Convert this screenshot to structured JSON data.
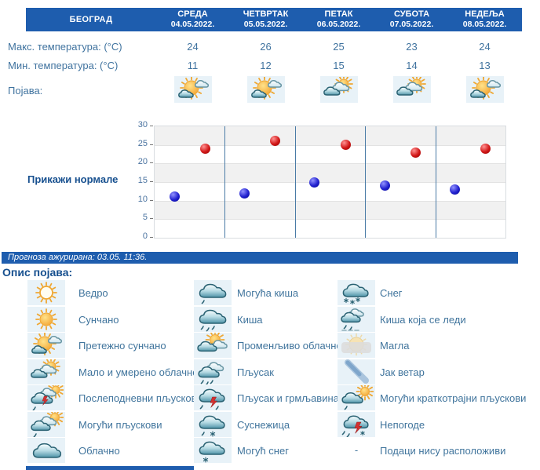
{
  "header": {
    "location": "БЕОГРАД",
    "days": [
      {
        "name": "СРЕДА",
        "date": "04.05.2022."
      },
      {
        "name": "ЧЕТВРТАК",
        "date": "05.05.2022."
      },
      {
        "name": "ПЕТАК",
        "date": "06.05.2022."
      },
      {
        "name": "СУБОТА",
        "date": "07.05.2022."
      },
      {
        "name": "НЕДЕЉА",
        "date": "08.05.2022."
      }
    ]
  },
  "table": {
    "max_label": "Макс. температура: (°C)",
    "min_label": "Мин. температура: (°C)",
    "phenomenon_label": "Појава:",
    "max_values": [
      24,
      26,
      25,
      23,
      24
    ],
    "min_values": [
      11,
      12,
      15,
      14,
      13
    ],
    "phenomenon_icons": [
      "mostly-sunny",
      "mostly-sunny",
      "partly-cloudy",
      "partly-cloudy",
      "mostly-sunny"
    ]
  },
  "chart": {
    "normals_button": "Прикажи нормале"
  },
  "chart_data": {
    "type": "scatter",
    "categories": [
      "04.05.2022.",
      "05.05.2022.",
      "06.05.2022.",
      "07.05.2022.",
      "08.05.2022."
    ],
    "series": [
      {
        "name": "Макс. температура (°C)",
        "color": "#d11616",
        "values": [
          24,
          26,
          25,
          23,
          24
        ]
      },
      {
        "name": "Мин. температура (°C)",
        "color": "#2121cf",
        "values": [
          11,
          12,
          15,
          14,
          13
        ]
      }
    ],
    "ylim": [
      0,
      30
    ],
    "yticks": [
      0,
      5,
      10,
      15,
      20,
      25,
      30
    ],
    "grid": "horizontal-bands-alternating",
    "legend_position": "none"
  },
  "status_bar": {
    "text": "Прогноза ажурирана:  03.05. 11:36."
  },
  "legend": {
    "title": "Опис појава:",
    "no_data_dash": "-",
    "columns": [
      [
        {
          "icon": "clear",
          "label": "Ведро"
        },
        {
          "icon": "sunny",
          "label": "Сунчано"
        },
        {
          "icon": "mostly-sunny",
          "label": "Претежно сунчано"
        },
        {
          "icon": "partly-cloudy",
          "label": "Мало и умерено облачно"
        },
        {
          "icon": "afternoon-showers",
          "label": "Послеподневни пљускови"
        },
        {
          "icon": "possible-showers",
          "label": "Могући пљускови"
        },
        {
          "icon": "cloudy",
          "label": "Облачно"
        }
      ],
      [
        {
          "icon": "possible-rain",
          "label": "Могућа киша"
        },
        {
          "icon": "rain",
          "label": "Киша"
        },
        {
          "icon": "variable-cloudy",
          "label": "Променљиво облачно"
        },
        {
          "icon": "shower",
          "label": "Пљусак"
        },
        {
          "icon": "shower-thunder",
          "label": "Пљусак и грмљавина"
        },
        {
          "icon": "sleet",
          "label": "Суснежица"
        },
        {
          "icon": "possible-snow",
          "label": "Могућ снег"
        }
      ],
      [
        {
          "icon": "snow",
          "label": "Снег"
        },
        {
          "icon": "freezing-rain",
          "label": "Киша која се леди"
        },
        {
          "icon": "fog",
          "label": "Магла"
        },
        {
          "icon": "strong-wind",
          "label": "Јак ветар"
        },
        {
          "icon": "short-showers",
          "label": "Могући краткотрајни пљускови"
        },
        {
          "icon": "storms",
          "label": "Непогоде"
        },
        {
          "icon": "none",
          "label": "Подаци нису расположиви"
        }
      ]
    ]
  },
  "colors": {
    "header_bg": "#1e5dae",
    "accent_text": "#17508f",
    "body_text": "#40739f",
    "tile_bg": "#e8f2f8",
    "band_gray": "#f1f1f1",
    "day_separator": "#4a7ba6",
    "max_dot": "#d11616",
    "min_dot": "#2121cf"
  }
}
